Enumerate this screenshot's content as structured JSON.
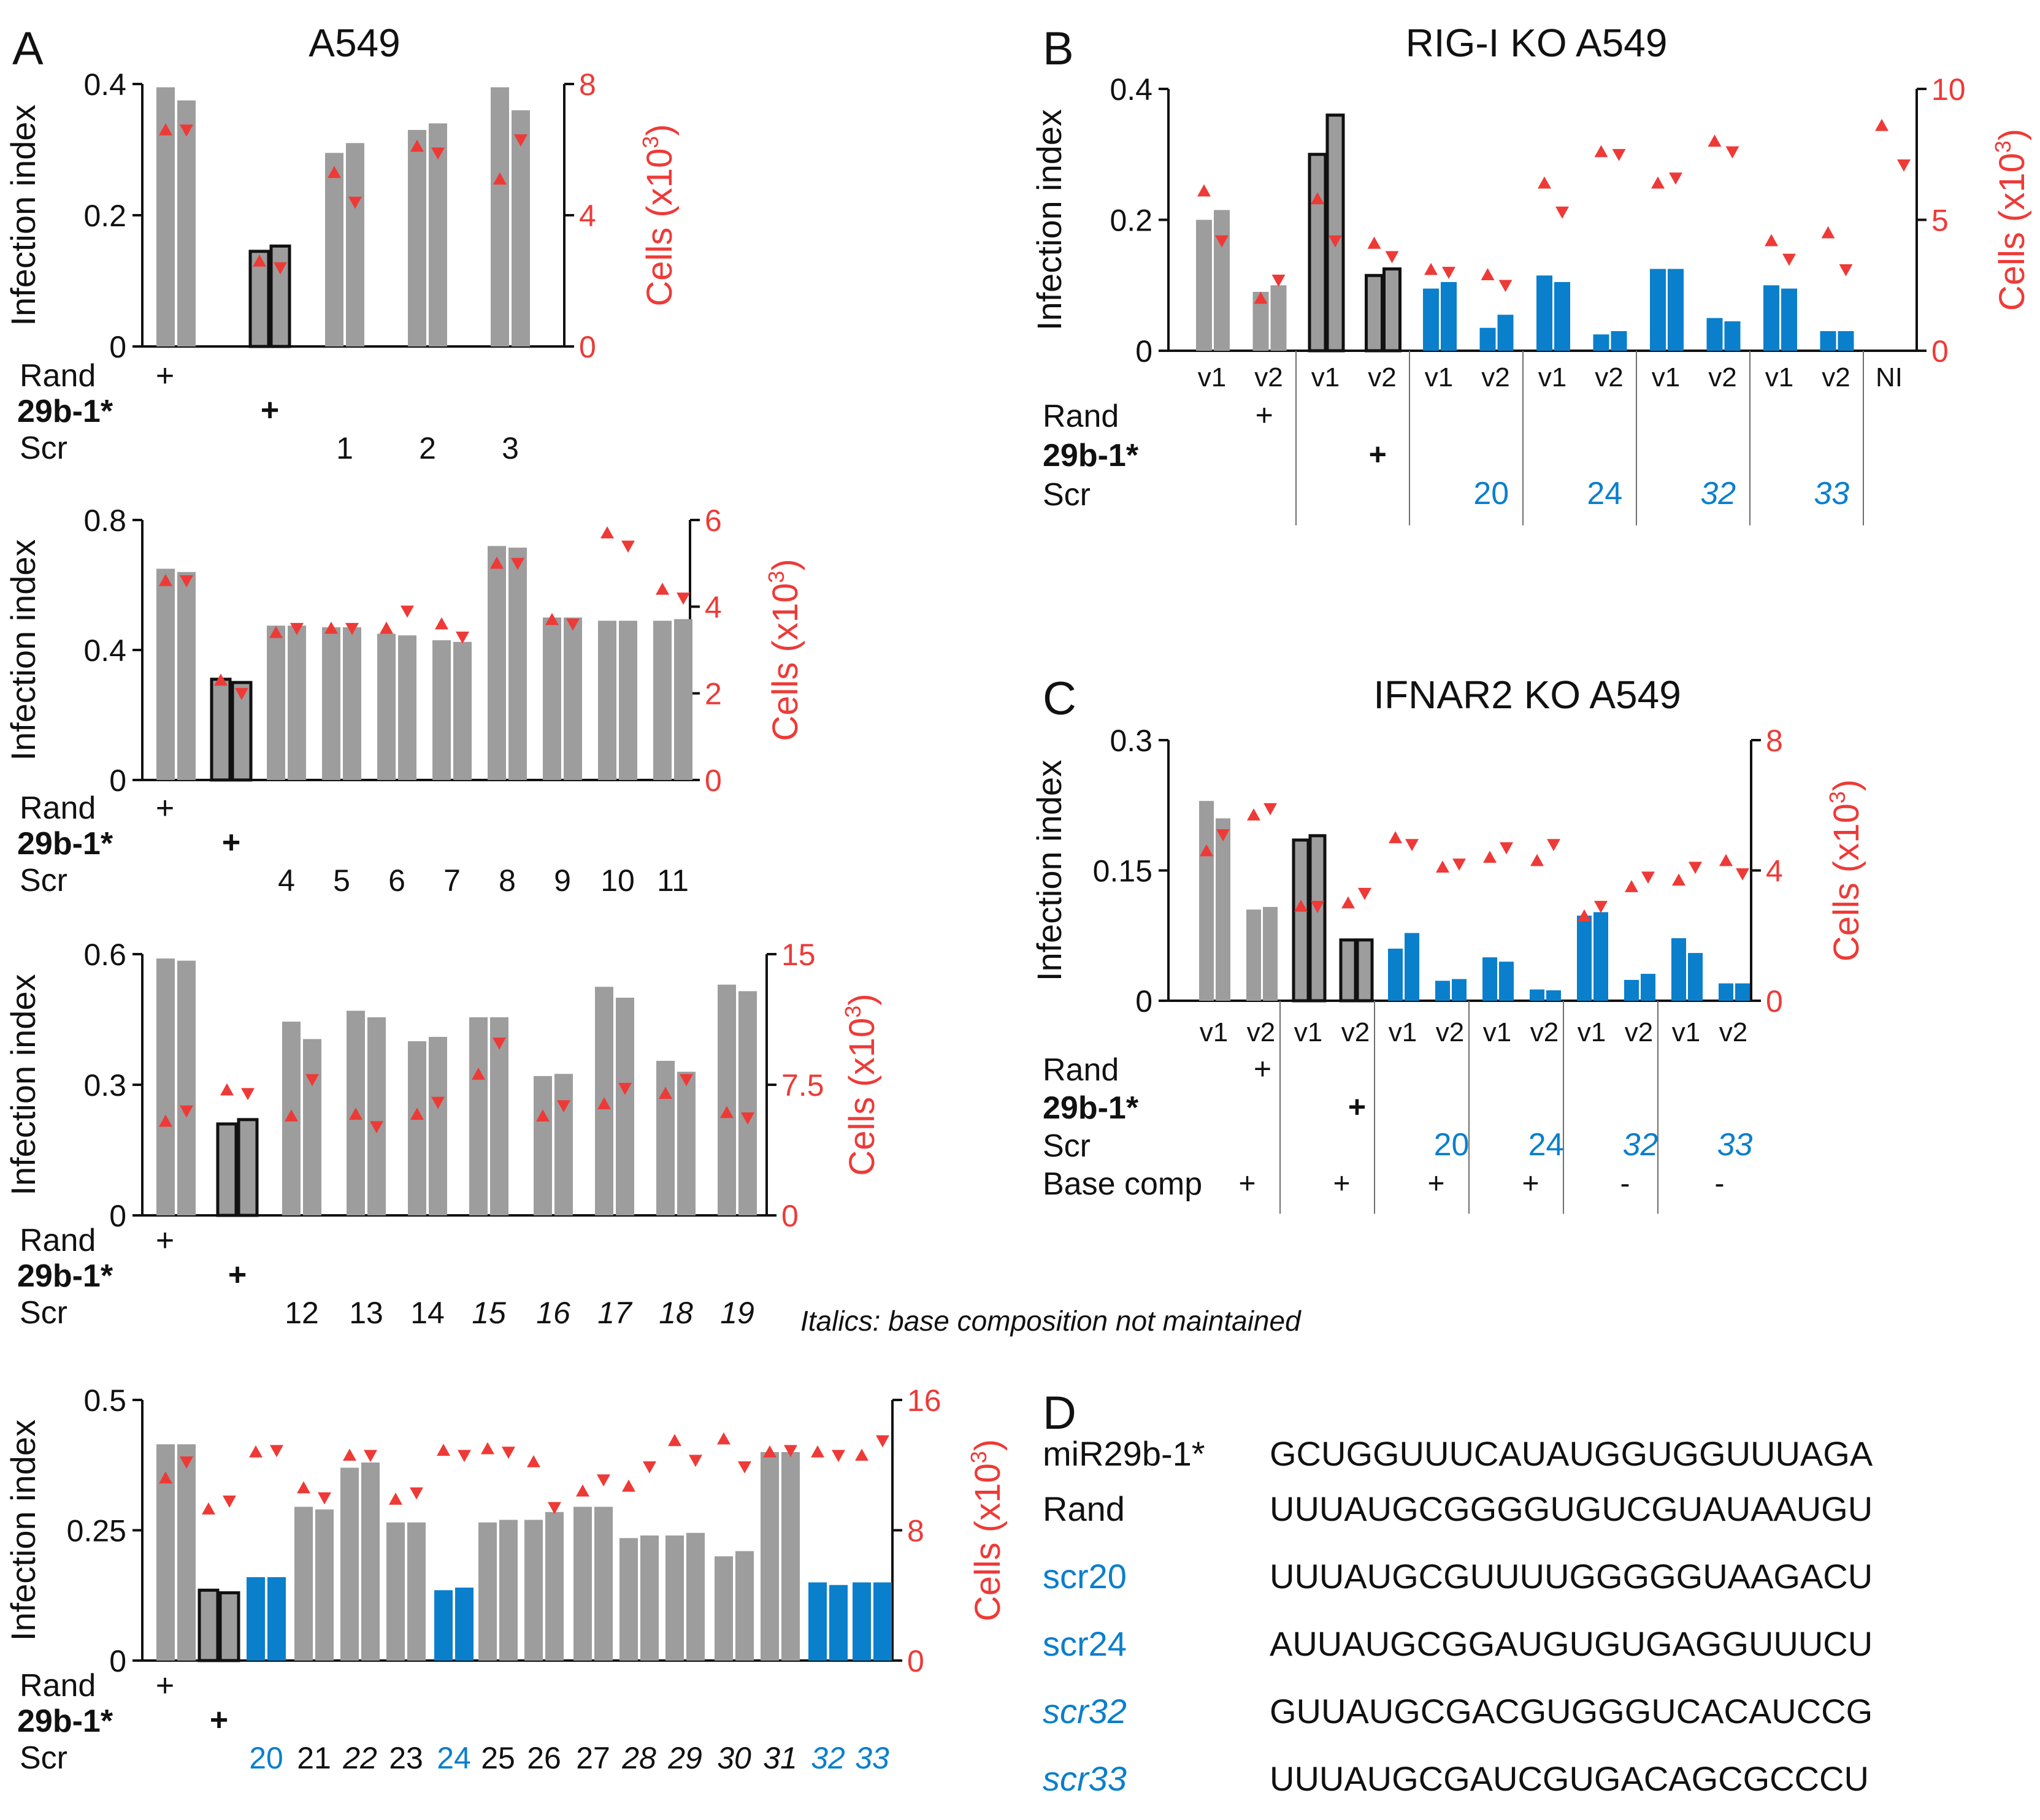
{
  "colors": {
    "gray": "#9d9d9d",
    "blue": "#0a7fcc",
    "red": "#ee3a37",
    "black": "#111111",
    "divider": "#6e6e6e"
  },
  "labels": {
    "infection_index": "Infection index",
    "cells": "Cells (x10",
    "cells_sup": "3",
    "cells_close": ")",
    "rand": "Rand",
    "mir": "29b-1*",
    "scr": "Scr",
    "base_comp": "Base comp",
    "plus": "+",
    "minus": "-",
    "italics_note": "Italics: base composition not maintained"
  },
  "panels": {
    "A": {
      "letter": "A",
      "title": "A549"
    },
    "B": {
      "letter": "B",
      "title": "RIG-I KO A549"
    },
    "C": {
      "letter": "C",
      "title": "IFNAR2 KO A549"
    },
    "D": {
      "letter": "D"
    }
  },
  "chart_data": [
    {
      "id": "A1",
      "panel": "A",
      "type": "bar",
      "title": "A549",
      "ylabel": "Infection index",
      "ylim": [
        0,
        0.4
      ],
      "yticks": [
        "0",
        "0.2",
        "0.4"
      ],
      "y2label": "Cells (x10^3)",
      "y2lim": [
        0,
        8
      ],
      "y2ticks": [
        "0",
        "4",
        "8"
      ],
      "groups": [
        {
          "kind": "rand",
          "scr": "",
          "bars": [
            0.395,
            0.375
          ],
          "cells": [
            6.6,
            6.6
          ]
        },
        {
          "kind": "mir",
          "scr": "",
          "bars": [
            0.145,
            0.153
          ],
          "cells": [
            2.6,
            2.4
          ]
        },
        {
          "kind": "scr",
          "scr": "1",
          "bars": [
            0.295,
            0.31
          ],
          "cells": [
            5.3,
            4.4
          ]
        },
        {
          "kind": "scr",
          "scr": "2",
          "bars": [
            0.33,
            0.34
          ],
          "cells": [
            6.1,
            5.9
          ]
        },
        {
          "kind": "scr",
          "scr": "3",
          "bars": [
            0.395,
            0.36
          ],
          "cells": [
            5.1,
            6.3
          ]
        }
      ]
    },
    {
      "id": "A2",
      "panel": "A",
      "type": "bar",
      "ylabel": "Infection index",
      "ylim": [
        0,
        0.8
      ],
      "yticks": [
        "0",
        "0.4",
        "0.8"
      ],
      "y2label": "Cells (x10^3)",
      "y2lim": [
        0,
        6
      ],
      "y2ticks": [
        "0",
        "2",
        "4",
        "6"
      ],
      "groups": [
        {
          "kind": "rand",
          "scr": "",
          "bars": [
            0.65,
            0.64
          ],
          "cells": [
            4.6,
            4.6
          ]
        },
        {
          "kind": "mir",
          "scr": "",
          "bars": [
            0.31,
            0.3
          ],
          "cells": [
            2.3,
            2.0
          ]
        },
        {
          "kind": "scr",
          "scr": "4",
          "bars": [
            0.475,
            0.475
          ],
          "cells": [
            3.4,
            3.5
          ]
        },
        {
          "kind": "scr",
          "scr": "5",
          "bars": [
            0.47,
            0.47
          ],
          "cells": [
            3.5,
            3.5
          ]
        },
        {
          "kind": "scr",
          "scr": "6",
          "bars": [
            0.45,
            0.445
          ],
          "cells": [
            3.5,
            3.9
          ]
        },
        {
          "kind": "scr",
          "scr": "7",
          "bars": [
            0.43,
            0.425
          ],
          "cells": [
            3.6,
            3.3
          ]
        },
        {
          "kind": "scr",
          "scr": "8",
          "bars": [
            0.72,
            0.715
          ],
          "cells": [
            5.0,
            5.0
          ]
        },
        {
          "kind": "scr",
          "scr": "9",
          "bars": [
            0.5,
            0.5
          ],
          "cells": [
            3.7,
            3.6
          ]
        },
        {
          "kind": "scr",
          "scr": "10",
          "bars": [
            0.49,
            0.49
          ],
          "cells": [
            5.7,
            5.4
          ]
        },
        {
          "kind": "scr",
          "scr": "11",
          "bars": [
            0.49,
            0.495
          ],
          "cells": [
            4.4,
            4.2
          ]
        }
      ]
    },
    {
      "id": "A3",
      "panel": "A",
      "type": "bar",
      "ylabel": "Infection index",
      "ylim": [
        0,
        0.6
      ],
      "yticks": [
        "0",
        "0.3",
        "0.6"
      ],
      "y2label": "Cells (x10^3)",
      "y2lim": [
        0,
        15
      ],
      "y2ticks": [
        "0",
        "7.5",
        "15"
      ],
      "groups": [
        {
          "kind": "rand",
          "scr": "",
          "bars": [
            0.59,
            0.585
          ],
          "cells": [
            5.4,
            6.0
          ]
        },
        {
          "kind": "mir",
          "scr": "",
          "bars": [
            0.21,
            0.22
          ],
          "cells": [
            7.2,
            7.0
          ]
        },
        {
          "kind": "scr",
          "scr": "12",
          "bars": [
            0.445,
            0.405
          ],
          "cells": [
            5.7,
            7.8
          ]
        },
        {
          "kind": "scr",
          "scr": "13",
          "bars": [
            0.47,
            0.455
          ],
          "cells": [
            5.8,
            5.1
          ]
        },
        {
          "kind": "scr",
          "scr": "14",
          "bars": [
            0.4,
            0.41
          ],
          "cells": [
            5.8,
            6.5
          ]
        },
        {
          "kind": "scr",
          "scr": "15",
          "bars": [
            0.455,
            0.455
          ],
          "cells": [
            8.1,
            9.9
          ],
          "italic": true
        },
        {
          "kind": "scr",
          "scr": "16",
          "bars": [
            0.32,
            0.325
          ],
          "cells": [
            5.7,
            6.3
          ],
          "italic": true
        },
        {
          "kind": "scr",
          "scr": "17",
          "bars": [
            0.525,
            0.5
          ],
          "cells": [
            6.4,
            7.3
          ],
          "italic": true
        },
        {
          "kind": "scr",
          "scr": "18",
          "bars": [
            0.355,
            0.33
          ],
          "cells": [
            7.0,
            7.8
          ],
          "italic": true
        },
        {
          "kind": "scr",
          "scr": "19",
          "bars": [
            0.53,
            0.515
          ],
          "cells": [
            5.9,
            5.6
          ],
          "italic": true
        }
      ]
    },
    {
      "id": "A4",
      "panel": "A",
      "type": "bar",
      "ylabel": "Infection index",
      "ylim": [
        0,
        0.5
      ],
      "yticks": [
        "0",
        "0.25",
        "0.5"
      ],
      "y2label": "Cells (x10^3)",
      "y2lim": [
        0,
        16
      ],
      "y2ticks": [
        "0",
        "8",
        "16"
      ],
      "groups": [
        {
          "kind": "rand",
          "scr": "",
          "bars": [
            0.415,
            0.415
          ],
          "cells": [
            11.2,
            12.2
          ]
        },
        {
          "kind": "mir",
          "scr": "",
          "bars": [
            0.135,
            0.13
          ],
          "cells": [
            9.3,
            9.8
          ]
        },
        {
          "kind": "scr",
          "scr": "20",
          "bars": [
            0.16,
            0.16
          ],
          "cells": [
            12.8,
            12.9
          ],
          "color": "blue"
        },
        {
          "kind": "scr",
          "scr": "21",
          "bars": [
            0.295,
            0.29
          ],
          "cells": [
            10.6,
            10.0
          ]
        },
        {
          "kind": "scr",
          "scr": "22",
          "bars": [
            0.37,
            0.38
          ],
          "cells": [
            12.6,
            12.6
          ],
          "italic": true
        },
        {
          "kind": "scr",
          "scr": "23",
          "bars": [
            0.265,
            0.265
          ],
          "cells": [
            9.9,
            10.3
          ]
        },
        {
          "kind": "scr",
          "scr": "24",
          "bars": [
            0.135,
            0.14
          ],
          "cells": [
            12.9,
            12.6
          ],
          "color": "blue"
        },
        {
          "kind": "scr",
          "scr": "25",
          "bars": [
            0.265,
            0.27
          ],
          "cells": [
            13.0,
            12.8
          ]
        },
        {
          "kind": "scr",
          "scr": "26",
          "bars": [
            0.27,
            0.285
          ],
          "cells": [
            12.2,
            9.4
          ]
        },
        {
          "kind": "scr",
          "scr": "27",
          "bars": [
            0.295,
            0.295
          ],
          "cells": [
            10.4,
            11.1
          ]
        },
        {
          "kind": "scr",
          "scr": "28",
          "bars": [
            0.235,
            0.24
          ],
          "cells": [
            10.7,
            11.9
          ],
          "italic": true
        },
        {
          "kind": "scr",
          "scr": "29",
          "bars": [
            0.24,
            0.245
          ],
          "cells": [
            13.5,
            12.3
          ],
          "italic": true
        },
        {
          "kind": "scr",
          "scr": "30",
          "bars": [
            0.2,
            0.21
          ],
          "cells": [
            13.6,
            11.9
          ],
          "italic": true
        },
        {
          "kind": "scr",
          "scr": "31",
          "bars": [
            0.4,
            0.4
          ],
          "cells": [
            12.8,
            12.9
          ],
          "italic": true
        },
        {
          "kind": "scr",
          "scr": "32",
          "bars": [
            0.15,
            0.145
          ],
          "cells": [
            12.8,
            12.6
          ],
          "color": "blue",
          "italic": true
        },
        {
          "kind": "scr",
          "scr": "33",
          "bars": [
            0.15,
            0.15
          ],
          "cells": [
            12.6,
            13.5
          ],
          "color": "blue",
          "italic": true
        }
      ]
    },
    {
      "id": "B",
      "panel": "B",
      "type": "bar",
      "title": "RIG-I KO A549",
      "ylabel": "Infection index",
      "ylim": [
        0,
        0.4
      ],
      "yticks": [
        "0",
        "0.2",
        "0.4"
      ],
      "y2label": "Cells (x10^3)",
      "y2lim": [
        0,
        10
      ],
      "y2ticks": [
        "0",
        "5",
        "10"
      ],
      "groups": [
        {
          "kind": "rand",
          "scr": "",
          "bars": [
            0.2,
            0.215,
            0.09,
            0.1
          ],
          "cells": [
            6.1,
            4.2,
            2.0,
            2.7
          ],
          "sublabels": [
            "v1",
            "v2"
          ]
        },
        {
          "kind": "mir",
          "scr": "",
          "bars": [
            0.3,
            0.36,
            0.115,
            0.125
          ],
          "cells": [
            5.8,
            4.2,
            4.1,
            3.6
          ],
          "sublabels": [
            "v1",
            "v2"
          ]
        },
        {
          "kind": "scr",
          "scr": "20",
          "bars": [
            0.095,
            0.105,
            0.035,
            0.055
          ],
          "cells": [
            3.1,
            3.0,
            2.9,
            2.5
          ],
          "color": "blue",
          "sublabels": [
            "v1",
            "v2"
          ]
        },
        {
          "kind": "scr",
          "scr": "24",
          "bars": [
            0.115,
            0.105,
            0.025,
            0.03
          ],
          "cells": [
            6.4,
            5.3,
            7.6,
            7.5
          ],
          "color": "blue",
          "sublabels": [
            "v1",
            "v2"
          ]
        },
        {
          "kind": "scr",
          "scr": "32",
          "bars": [
            0.125,
            0.125,
            0.05,
            0.045
          ],
          "cells": [
            6.4,
            6.6,
            8.0,
            7.6
          ],
          "color": "blue",
          "italic": true,
          "sublabels": [
            "v1",
            "v2"
          ]
        },
        {
          "kind": "scr",
          "scr": "33",
          "bars": [
            0.1,
            0.095,
            0.03,
            0.03
          ],
          "cells": [
            4.2,
            3.5,
            4.5,
            3.1
          ],
          "color": "blue",
          "italic": true,
          "sublabels": [
            "v1",
            "v2"
          ]
        },
        {
          "kind": "ni",
          "scr": "",
          "bars": [],
          "cells": [
            8.6,
            7.1
          ],
          "sublabels": [
            "NI"
          ]
        }
      ]
    },
    {
      "id": "C",
      "panel": "C",
      "type": "bar",
      "title": "IFNAR2 KO A549",
      "ylabel": "Infection index",
      "ylim": [
        0,
        0.3
      ],
      "yticks": [
        "0",
        "0.15",
        "0.3"
      ],
      "y2label": "Cells (x10^3)",
      "y2lim": [
        0,
        8
      ],
      "y2ticks": [
        "0",
        "4",
        "8"
      ],
      "groups": [
        {
          "kind": "rand",
          "scr": "",
          "base": "+",
          "bars": [
            0.23,
            0.21,
            0.105,
            0.108
          ],
          "cells": [
            4.6,
            5.1,
            5.7,
            5.9
          ],
          "sublabels": [
            "v1",
            "v2"
          ]
        },
        {
          "kind": "mir",
          "scr": "",
          "base": "+",
          "bars": [
            0.185,
            0.19,
            0.07,
            0.07
          ],
          "cells": [
            2.9,
            2.9,
            3.0,
            3.3
          ],
          "sublabels": [
            "v1",
            "v2"
          ]
        },
        {
          "kind": "scr",
          "scr": "20",
          "base": "+",
          "bars": [
            0.06,
            0.078,
            0.023,
            0.025
          ],
          "cells": [
            5.0,
            4.8,
            4.1,
            4.2
          ],
          "color": "blue",
          "sublabels": [
            "v1",
            "v2"
          ]
        },
        {
          "kind": "scr",
          "scr": "24",
          "base": "+",
          "bars": [
            0.05,
            0.045,
            0.013,
            0.012
          ],
          "cells": [
            4.4,
            4.7,
            4.3,
            4.8
          ],
          "color": "blue",
          "sublabels": [
            "v1",
            "v2"
          ]
        },
        {
          "kind": "scr",
          "scr": "32",
          "base": "-",
          "bars": [
            0.098,
            0.102,
            0.024,
            0.031
          ],
          "cells": [
            2.6,
            2.9,
            3.5,
            3.8
          ],
          "color": "blue",
          "italic": true,
          "sublabels": [
            "v1",
            "v2"
          ]
        },
        {
          "kind": "scr",
          "scr": "33",
          "base": "-",
          "bars": [
            0.072,
            0.055,
            0.02,
            0.02
          ],
          "cells": [
            3.7,
            4.1,
            4.3,
            3.9
          ],
          "color": "blue",
          "italic": true,
          "sublabels": [
            "v1",
            "v2"
          ]
        }
      ]
    }
  ],
  "sequences": [
    {
      "name": "miR29b-1*",
      "seq": "GCUGGUUUCAUAUGGUGGUUUAGA",
      "color": "black",
      "italic": false
    },
    {
      "name": "Rand",
      "seq": "UUUAUGCGGGGUGUCGUAUAAUGU",
      "color": "black",
      "italic": false
    },
    {
      "name": "scr20",
      "seq": "UUUAUGCGUUUUGGGGGUAAGACU",
      "color": "blue",
      "italic": false
    },
    {
      "name": "scr24",
      "seq": "AUUAUGCGGAUGUGUGAGGUUUCU",
      "color": "blue",
      "italic": false
    },
    {
      "name": "scr32",
      "seq": "GUUAUGCGACGUGGGUCACAUCCG",
      "color": "blue",
      "italic": true
    },
    {
      "name": "scr33",
      "seq": "UUUAUGCGAUCGUGACAGCGCCCU",
      "color": "blue",
      "italic": true
    }
  ]
}
